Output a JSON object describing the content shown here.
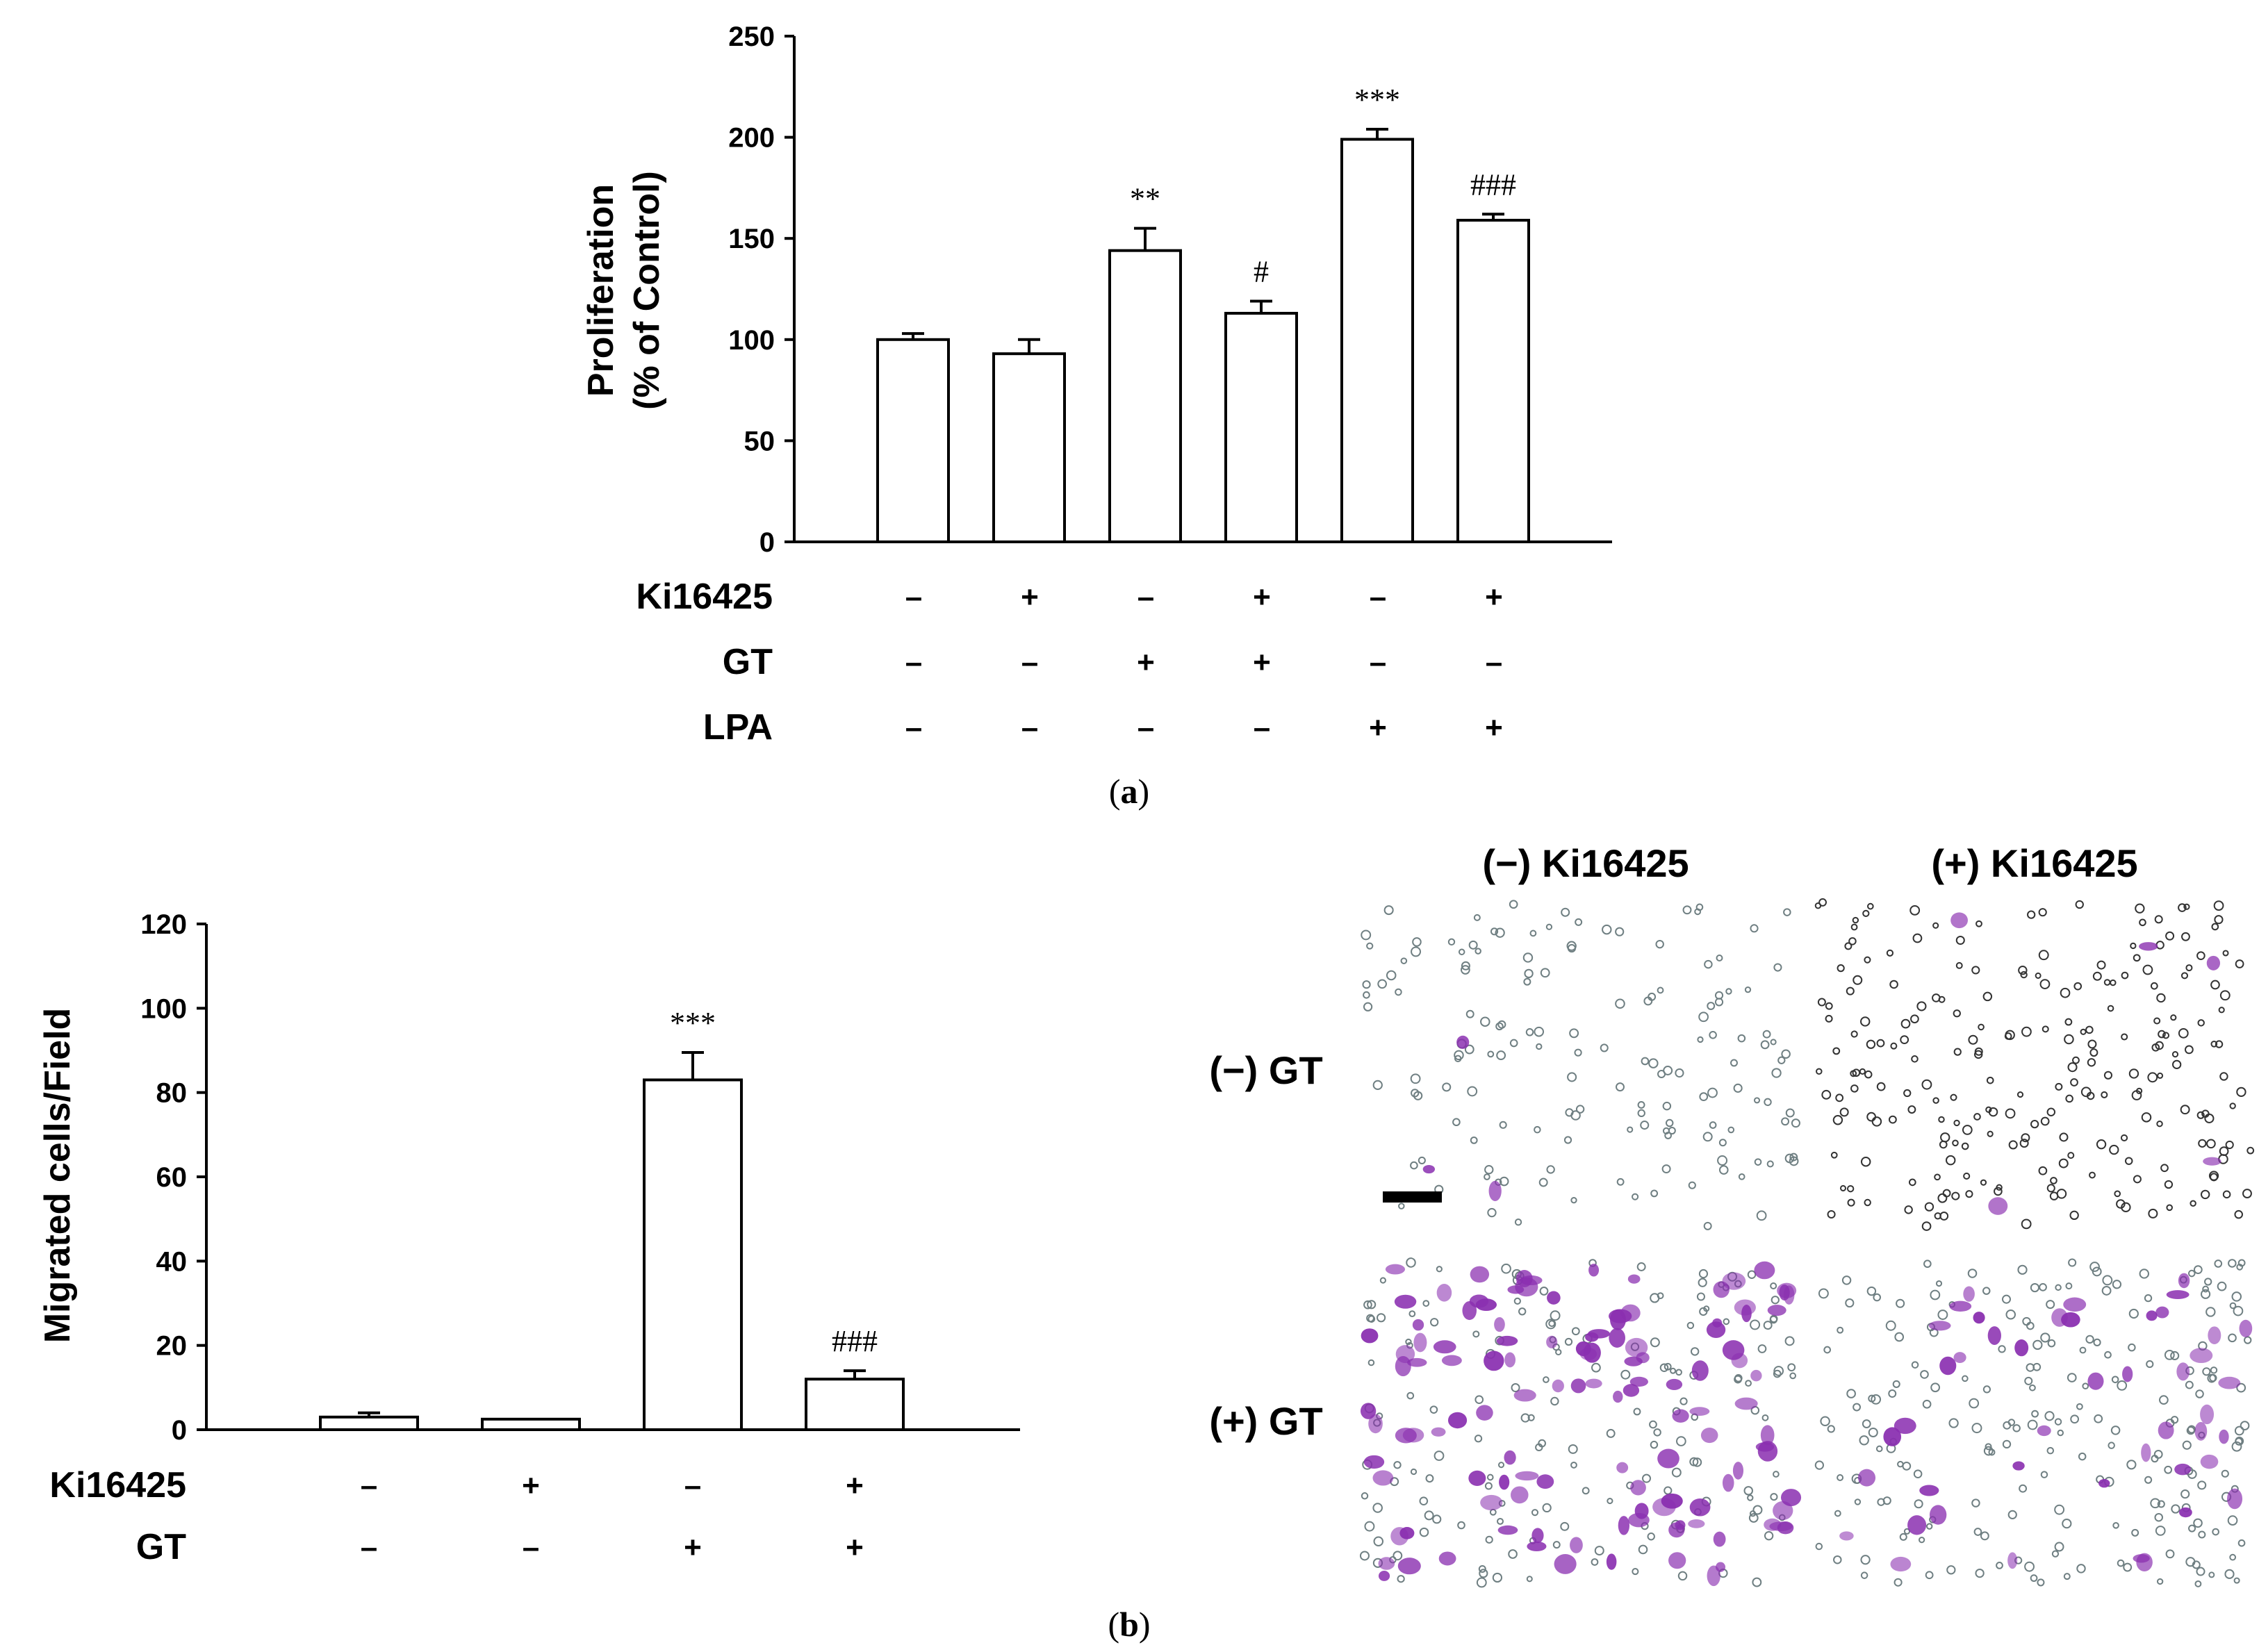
{
  "colors": {
    "axis": "#000000",
    "bar_fill": "#ffffff",
    "stain_purple": "#8a2fb0",
    "cell_outline": "#6f7f82"
  },
  "chart_data": [
    {
      "type": "bar",
      "panel_caption": {
        "open": "(",
        "letter": "a",
        "close": ")"
      },
      "ylabel_line1": "Proliferation",
      "ylabel_line2": "(% of Control)",
      "ylim": [
        0,
        250
      ],
      "yticks": [
        0,
        50,
        100,
        150,
        200,
        250
      ],
      "values": [
        100,
        93,
        144,
        113,
        199,
        159
      ],
      "errors": [
        3,
        7,
        11,
        6,
        5,
        3
      ],
      "significance": [
        "",
        "",
        "**",
        "#",
        "***",
        "###"
      ],
      "conditions": [
        {
          "label": "Ki16425",
          "signs": [
            "–",
            "+",
            "–",
            "+",
            "–",
            "+"
          ]
        },
        {
          "label": "GT",
          "signs": [
            "–",
            "–",
            "+",
            "+",
            "–",
            "–"
          ]
        },
        {
          "label": "LPA",
          "signs": [
            "–",
            "–",
            "–",
            "–",
            "+",
            "+"
          ]
        }
      ]
    },
    {
      "type": "bar",
      "panel_caption": {
        "open": "(",
        "letter": "b",
        "close": ")"
      },
      "ylabel": "Migrated cells/Field",
      "ylim": [
        0,
        120
      ],
      "yticks": [
        0,
        20,
        40,
        60,
        80,
        100,
        120
      ],
      "values": [
        3,
        2.5,
        83,
        12
      ],
      "errors": [
        1,
        0,
        6.5,
        2
      ],
      "significance": [
        "",
        "",
        "***",
        "###"
      ],
      "conditions": [
        {
          "label": "Ki16425",
          "signs": [
            "–",
            "+",
            "–",
            "+"
          ]
        },
        {
          "label": "GT",
          "signs": [
            "–",
            "–",
            "+",
            "+"
          ]
        }
      ]
    }
  ],
  "micrographs": {
    "column_labels": [
      "(−) Ki16425",
      "(+) Ki16425"
    ],
    "row_labels": [
      "(−) GT",
      "(+) GT"
    ]
  }
}
